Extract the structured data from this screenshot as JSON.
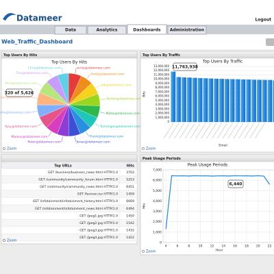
{
  "header": {
    "logo": "Datameer",
    "logout": "Logout"
  },
  "tabs": [
    "Data",
    "Analytics",
    "Dashboards",
    "Administration"
  ],
  "active_tab": 2,
  "dashboard_title": "Web_Traffic_Dashboard",
  "widgets": [
    {
      "header": "Top Users By Hits",
      "zoom": "Zoom",
      "chart_data": {
        "type": "pie",
        "title": "Top Users By Hits",
        "tooltip": "320 of 5,626",
        "categories": [
          "ernie@datameer.com",
          "Andy@datameer.com",
          "jdb@datameer.com",
          "Stefan@datameer.com",
          "Malte@datameer.com",
          "Tomanger@datameer.com",
          "Frank@datameer.com",
          "Jonas@datameer.com",
          "Peter@datameer.com",
          "Markus@datameer.com",
          "Ajay@datameer.com",
          "Marko@datameer.com",
          "Dagmar@datameer.com",
          "Pete@datameer.com",
          "Tina@datameer.com",
          "Chris@datameer.com"
        ],
        "values": [
          372,
          360,
          355,
          350,
          348,
          345,
          340,
          338,
          335,
          352,
          365,
          358,
          362,
          370,
          356,
          320
        ],
        "colors": [
          "#e63b3b",
          "#f08c1c",
          "#f5d21c",
          "#9ad61e",
          "#2cb84a",
          "#1ec7b8",
          "#2a8fe0",
          "#3d4fd6",
          "#8b3dd6",
          "#d63dbf",
          "#e6558a",
          "#7fb0ff",
          "#ffb37f",
          "#b7e67f",
          "#c89bff",
          "#5fd0e6"
        ]
      }
    },
    {
      "header": "Top Users By Traffic",
      "zoom": "Zoom",
      "chart_data": {
        "type": "bar",
        "title": "Top Users By Traffic",
        "tooltip": "11,763,938",
        "xlabel": "Email",
        "ylabel": "Bits",
        "color": "#1a84e0",
        "categories": [
          null,
          null,
          null,
          null,
          null,
          null,
          null,
          null,
          null,
          null,
          null,
          null,
          null,
          null,
          null,
          null,
          null,
          null,
          null,
          null
        ],
        "values": [
          11763938,
          10500000,
          10420000,
          10360000,
          10300000,
          10250000,
          10200000,
          10150000,
          10100000,
          10060000,
          10020000,
          9990000,
          9960000,
          9930000,
          9900000,
          9870000,
          9850000,
          9820000,
          9800000,
          9700000
        ],
        "ylim": [
          0,
          13000000
        ],
        "yticks": [
          0,
          {
            "value": 1000000,
            "label": "1,000,000"
          },
          {
            "value": 2000000,
            "label": "2,000,000"
          },
          {
            "value": 3000000,
            "label": "3,000,000"
          },
          {
            "value": 4000000,
            "label": "4,000,000"
          },
          {
            "value": 5000000,
            "label": "5,000,000"
          },
          {
            "value": 6000000,
            "label": "6,000,000"
          },
          {
            "value": 7000000,
            "label": "7,000,000"
          },
          {
            "value": 8000000,
            "label": "8,000,000"
          },
          {
            "value": 9000000,
            "label": "9,000,000"
          },
          {
            "value": 10000000,
            "label": "10,000,000"
          },
          {
            "value": 11000000,
            "label": "11,000,000"
          },
          {
            "value": 12000000,
            "label": "12,000,000"
          },
          {
            "value": 13000000,
            "label": "13,000,000"
          }
        ],
        "grid": true
      }
    },
    {
      "zoom": "Zoom",
      "table": {
        "columns": [
          "Top URLs",
          "Hits"
        ],
        "rows": [
          [
            "GET /business/business_news.html HTTP/1.0",
            3702
          ],
          [
            "GET /community/community_forum.html HTTP/1.0",
            5253
          ],
          [
            "GET /community/community_news.html HTTP/1.0",
            6451
          ],
          [
            "GET /favicon.ico HTTP/1.0",
            1459
          ],
          [
            "GET /infotainment/infotainment_history.html HTTP/1.0",
            6669
          ],
          [
            "GET /infotainment/infotainment_news.html HTTP/1.0",
            6494
          ],
          [
            "GET /jpeg1.jpg HTTP/1.0",
            1450
          ],
          [
            "GET /jpeg2.jpg HTTP/1.0",
            1542
          ],
          [
            "GET /jpeg3.jpg HTTP/1.0",
            1432
          ],
          [
            "GET /jpeg4.jpg HTTP/1.0",
            1422
          ]
        ]
      }
    },
    {
      "header": "Peak Usage Periods",
      "zoom": "Zoom",
      "chart_data": {
        "type": "line",
        "title": "Peak Usage Periods",
        "tooltip": "6,440",
        "xlabel": "Hour",
        "ylabel": "Hits",
        "color": "#2a8fe0",
        "x": [
          4,
          5,
          6,
          7,
          8,
          9,
          10,
          11,
          12,
          13,
          14,
          15,
          16,
          17,
          18,
          19,
          20,
          21,
          22
        ],
        "values": [
          1300,
          6440,
          6420,
          6430,
          6410,
          6440,
          6420,
          6430,
          6400,
          6420,
          6430,
          6410,
          6440,
          6420,
          6430,
          6410,
          6440,
          6400,
          5600
        ],
        "xlim": [
          3.5,
          23
        ],
        "xticks": [
          4,
          6,
          8,
          10,
          12,
          14,
          16,
          18,
          20,
          22
        ],
        "ylim": [
          0,
          7000
        ],
        "yticks": [
          0,
          {
            "value": 1000,
            "label": "1,000"
          },
          {
            "value": 2000,
            "label": "2,000"
          },
          {
            "value": 3000,
            "label": "3,000"
          },
          {
            "value": 4000,
            "label": "4,000"
          },
          {
            "value": 5000,
            "label": "5,000"
          },
          {
            "value": 6000,
            "label": "6,000"
          },
          {
            "value": 7000,
            "label": "7,000"
          }
        ],
        "grid": true
      }
    }
  ]
}
